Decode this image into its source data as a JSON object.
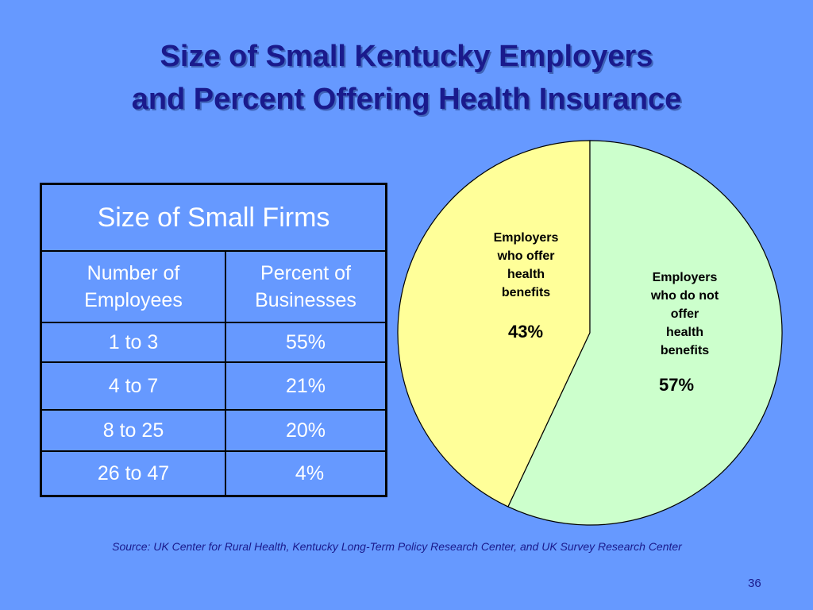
{
  "slide": {
    "title_line1": "Size of Small Kentucky Employers",
    "title_line2": "and Percent Offering Health Insurance",
    "source": "Source: UK Center for Rural Health, Kentucky Long-Term Policy Research Center, and UK Survey Research Center",
    "page_number": "36",
    "colors": {
      "background": "#6699ff",
      "title": "#1a1a8c"
    }
  },
  "table": {
    "title": "Size of Small Firms",
    "columns": [
      "Number of Employees",
      "Percent of Businesses"
    ],
    "column_lines": [
      [
        "Number of",
        "Employees"
      ],
      [
        "Percent of",
        "Businesses"
      ]
    ],
    "rows": [
      [
        "1 to 3",
        "55%"
      ],
      [
        "4 to 7",
        "21%"
      ],
      [
        "8 to 25",
        "20%"
      ],
      [
        "26 to 47",
        "4%"
      ]
    ]
  },
  "chart_data": {
    "type": "pie",
    "categories": [
      "Employers who offer health benefits",
      "Employers who do not offer health benefits"
    ],
    "values": [
      43,
      57
    ],
    "value_labels": [
      "43%",
      "57%"
    ],
    "label_lines": [
      [
        "Employers",
        "who offer",
        "health",
        "benefits"
      ],
      [
        "Employers",
        "who do not",
        "offer",
        "health",
        "benefits"
      ]
    ],
    "colors": [
      "#ffff99",
      "#ccffcc"
    ],
    "start": "12 o'clock, counterclockwise for first slice",
    "legend": "none"
  }
}
